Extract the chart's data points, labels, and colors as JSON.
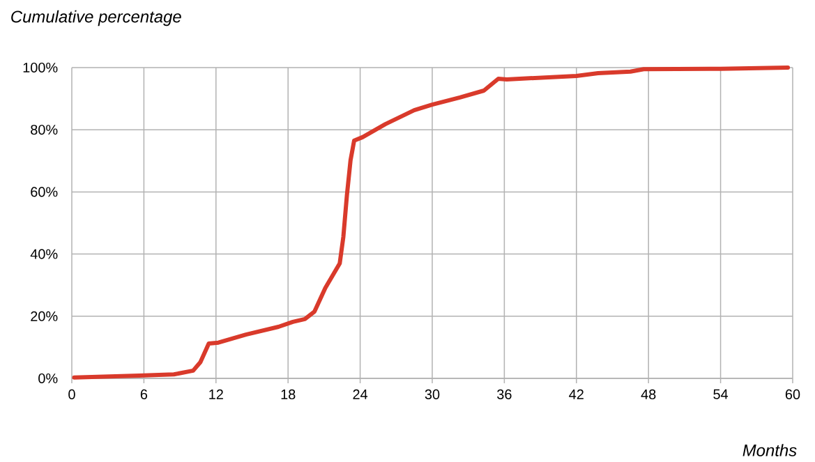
{
  "chart_data": {
    "type": "line",
    "ylabel": "Cumulative percentage",
    "xlabel": "Months",
    "x": [
      0.2,
      5.6,
      8.5,
      10.1,
      10.7,
      11.4,
      12.2,
      14.5,
      17.2,
      18.4,
      19.4,
      20.2,
      21.1,
      22.3,
      22.6,
      22.9,
      23.2,
      23.5,
      24.2,
      26.1,
      28.5,
      30.0,
      32.3,
      34.3,
      35.5,
      36.2,
      42.0,
      43.8,
      46.5,
      47.6,
      54.0,
      59.6
    ],
    "values": [
      0.3,
      0.9,
      1.3,
      2.5,
      5.2,
      11.2,
      11.5,
      14.1,
      16.6,
      18.2,
      19.1,
      21.5,
      29.1,
      37,
      45.5,
      59,
      70.2,
      76.5,
      77.6,
      81.8,
      86.3,
      88.1,
      90.4,
      92.6,
      96.4,
      96.2,
      97.3,
      98.2,
      98.7,
      99.5,
      99.6,
      100
    ],
    "color": "#d93a2b",
    "xlim": [
      0,
      60
    ],
    "ylim": [
      0,
      100
    ],
    "xticks": [
      0,
      6,
      12,
      18,
      24,
      30,
      36,
      42,
      48,
      54,
      60
    ],
    "yticks": [
      {
        "value": 0,
        "label": "0%"
      },
      {
        "value": 20,
        "label": "20%"
      },
      {
        "value": 40,
        "label": "40%"
      },
      {
        "value": 60,
        "label": "60%"
      },
      {
        "value": 80,
        "label": "80%"
      },
      {
        "value": 100,
        "label": "100%"
      }
    ],
    "grid": true
  }
}
